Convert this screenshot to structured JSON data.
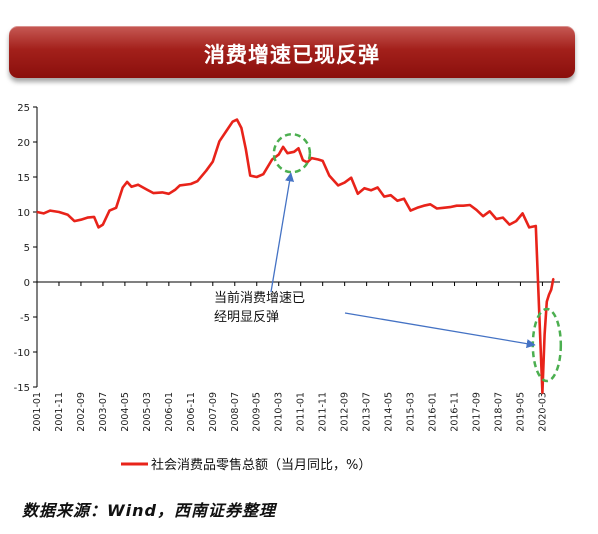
{
  "title": "消费增速已现反弹",
  "source": "数据来源：Wind，西南证券整理",
  "annotation": [
    "当前消费增速已",
    "经明显反弹"
  ],
  "colors": {
    "series": "#e8231a",
    "highlight": "#4caf50",
    "arrow": "#4472c4",
    "banner": "#a3201b"
  },
  "chart_data": {
    "type": "line",
    "title": "消费增速已现反弹",
    "ylim": [
      -15,
      25
    ],
    "yticks": [
      -15,
      -10,
      -5,
      0,
      5,
      10,
      15,
      20,
      25
    ],
    "x_tick_labels": [
      "2001-01",
      "2001-11",
      "2002-09",
      "2003-07",
      "2004-05",
      "2005-03",
      "2006-01",
      "2006-11",
      "2007-09",
      "2008-07",
      "2009-05",
      "2010-03",
      "2011-01",
      "2011-11",
      "2012-09",
      "2013-07",
      "2014-05",
      "2015-03",
      "2016-01",
      "2016-11",
      "2017-09",
      "2018-07",
      "2019-05",
      "2020-03"
    ],
    "legend": "社会消费品零售总额（当月同比，%）",
    "legend_position": "bottom",
    "series": [
      {
        "name": "社会消费品零售总额（当月同比，%）",
        "points": [
          [
            "2001-01",
            10.0
          ],
          [
            "2001-04",
            9.8
          ],
          [
            "2001-07",
            10.2
          ],
          [
            "2001-11",
            10.0
          ],
          [
            "2002-03",
            9.6
          ],
          [
            "2002-06",
            8.7
          ],
          [
            "2002-09",
            8.9
          ],
          [
            "2002-12",
            9.2
          ],
          [
            "2003-03",
            9.3
          ],
          [
            "2003-05",
            7.8
          ],
          [
            "2003-07",
            8.2
          ],
          [
            "2003-10",
            10.2
          ],
          [
            "2004-01",
            10.6
          ],
          [
            "2004-04",
            13.5
          ],
          [
            "2004-06",
            14.3
          ],
          [
            "2004-08",
            13.6
          ],
          [
            "2004-11",
            13.9
          ],
          [
            "2005-03",
            13.2
          ],
          [
            "2005-06",
            12.7
          ],
          [
            "2005-10",
            12.8
          ],
          [
            "2006-01",
            12.6
          ],
          [
            "2006-04",
            13.2
          ],
          [
            "2006-06",
            13.8
          ],
          [
            "2006-11",
            14.0
          ],
          [
            "2007-02",
            14.4
          ],
          [
            "2007-06",
            15.9
          ],
          [
            "2007-09",
            17.2
          ],
          [
            "2007-12",
            20.1
          ],
          [
            "2008-03",
            21.5
          ],
          [
            "2008-06",
            22.9
          ],
          [
            "2008-08",
            23.2
          ],
          [
            "2008-10",
            22.0
          ],
          [
            "2008-12",
            19.0
          ],
          [
            "2009-02",
            15.2
          ],
          [
            "2009-05",
            15.0
          ],
          [
            "2009-08",
            15.4
          ],
          [
            "2009-12",
            17.5
          ],
          [
            "2010-03",
            18.2
          ],
          [
            "2010-05",
            19.3
          ],
          [
            "2010-07",
            18.4
          ],
          [
            "2010-10",
            18.6
          ],
          [
            "2010-12",
            19.1
          ],
          [
            "2011-02",
            17.4
          ],
          [
            "2011-04",
            17.1
          ],
          [
            "2011-06",
            17.7
          ],
          [
            "2011-09",
            17.5
          ],
          [
            "2011-11",
            17.3
          ],
          [
            "2012-02",
            15.2
          ],
          [
            "2012-06",
            13.8
          ],
          [
            "2012-09",
            14.2
          ],
          [
            "2012-12",
            14.9
          ],
          [
            "2013-03",
            12.6
          ],
          [
            "2013-06",
            13.4
          ],
          [
            "2013-09",
            13.1
          ],
          [
            "2013-12",
            13.5
          ],
          [
            "2014-03",
            12.2
          ],
          [
            "2014-06",
            12.4
          ],
          [
            "2014-09",
            11.6
          ],
          [
            "2014-12",
            11.9
          ],
          [
            "2015-03",
            10.2
          ],
          [
            "2015-06",
            10.6
          ],
          [
            "2015-09",
            10.9
          ],
          [
            "2015-12",
            11.1
          ],
          [
            "2016-03",
            10.5
          ],
          [
            "2016-06",
            10.6
          ],
          [
            "2016-09",
            10.7
          ],
          [
            "2016-12",
            10.9
          ],
          [
            "2017-03",
            10.9
          ],
          [
            "2017-06",
            11.0
          ],
          [
            "2017-09",
            10.3
          ],
          [
            "2017-12",
            9.4
          ],
          [
            "2018-03",
            10.1
          ],
          [
            "2018-06",
            9.0
          ],
          [
            "2018-09",
            9.2
          ],
          [
            "2018-12",
            8.2
          ],
          [
            "2019-03",
            8.7
          ],
          [
            "2019-06",
            9.8
          ],
          [
            "2019-09",
            7.8
          ],
          [
            "2019-12",
            8.0
          ],
          [
            "2020-03",
            -15.8
          ],
          [
            "2020-04",
            -7.5
          ],
          [
            "2020-05",
            -2.8
          ],
          [
            "2020-06",
            -1.8
          ],
          [
            "2020-07",
            -1.1
          ],
          [
            "2020-08",
            0.5
          ]
        ]
      }
    ]
  }
}
